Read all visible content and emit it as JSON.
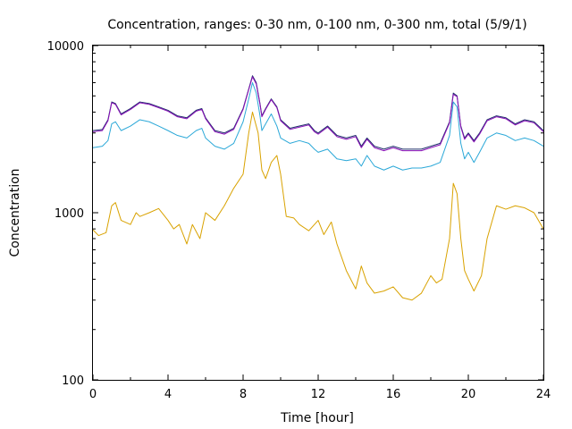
{
  "chart_data": {
    "type": "line",
    "title": "Concentration, ranges: 0-30 nm, 0-100 nm, 0-300 nm, total (5/9/1)",
    "xlabel": "Time [hour]",
    "ylabel": "Concentration",
    "xlim": [
      0,
      24
    ],
    "ylim": [
      100,
      10000
    ],
    "yscale": "log",
    "grid": false,
    "x_ticks": [
      "0",
      "4",
      "8",
      "12",
      "16",
      "20",
      "24"
    ],
    "y_ticks": [
      "100",
      "1000",
      "10000"
    ],
    "colors": {
      "total": "#1f2f6b",
      "range_0_300": "#8a0fb8",
      "range_0_100": "#2ba8d8",
      "range_0_30": "#d9a200"
    },
    "series": [
      {
        "key": "total",
        "color": "#1f2f6b",
        "x": [
          0,
          0.5,
          0.8,
          1.0,
          1.2,
          1.5,
          2.0,
          2.5,
          3.0,
          3.5,
          4.0,
          4.5,
          5.0,
          5.5,
          5.8,
          6.0,
          6.5,
          7.0,
          7.5,
          8.0,
          8.3,
          8.5,
          8.7,
          8.9,
          9.0,
          9.2,
          9.5,
          9.8,
          10.0,
          10.5,
          11.0,
          11.5,
          11.8,
          12.0,
          12.5,
          13.0,
          13.5,
          14.0,
          14.3,
          14.6,
          15.0,
          15.5,
          16.0,
          16.5,
          17.0,
          17.5,
          18.0,
          18.5,
          19.0,
          19.2,
          19.4,
          19.6,
          19.8,
          20.0,
          20.3,
          20.6,
          21.0,
          21.5,
          22.0,
          22.5,
          23.0,
          23.5,
          24.0
        ],
        "y": [
          3100,
          3150,
          3600,
          4600,
          4500,
          3900,
          4200,
          4600,
          4500,
          4300,
          4100,
          3800,
          3700,
          4100,
          4200,
          3700,
          3100,
          3000,
          3200,
          4200,
          5500,
          6600,
          6000,
          4500,
          3800,
          4200,
          4800,
          4300,
          3600,
          3200,
          3300,
          3400,
          3100,
          3000,
          3300,
          2900,
          2800,
          2900,
          2500,
          2800,
          2500,
          2400,
          2500,
          2400,
          2400,
          2400,
          2500,
          2600,
          3500,
          5200,
          5000,
          3300,
          2800,
          3000,
          2700,
          3000,
          3600,
          3800,
          3700,
          3400,
          3600,
          3500,
          3100
        ]
      },
      {
        "key": "range_0_300",
        "color": "#8a0fb8",
        "x": [
          0,
          0.5,
          0.8,
          1.0,
          1.2,
          1.5,
          2.0,
          2.5,
          3.0,
          3.5,
          4.0,
          4.5,
          5.0,
          5.5,
          5.8,
          6.0,
          6.5,
          7.0,
          7.5,
          8.0,
          8.3,
          8.5,
          8.7,
          8.9,
          9.0,
          9.2,
          9.5,
          9.8,
          10.0,
          10.5,
          11.0,
          11.5,
          11.8,
          12.0,
          12.5,
          13.0,
          13.5,
          14.0,
          14.3,
          14.6,
          15.0,
          15.5,
          16.0,
          16.5,
          17.0,
          17.5,
          18.0,
          18.5,
          19.0,
          19.2,
          19.4,
          19.6,
          19.8,
          20.0,
          20.3,
          20.6,
          21.0,
          21.5,
          22.0,
          22.5,
          23.0,
          23.5,
          24.0
        ],
        "y": [
          3050,
          3100,
          3550,
          4550,
          4450,
          3850,
          4150,
          4550,
          4450,
          4250,
          4050,
          3750,
          3650,
          4050,
          4150,
          3650,
          3050,
          2950,
          3150,
          4150,
          5450,
          6500,
          5900,
          4450,
          3750,
          4150,
          4750,
          4250,
          3550,
          3150,
          3250,
          3350,
          3050,
          2950,
          3250,
          2850,
          2750,
          2850,
          2450,
          2750,
          2450,
          2350,
          2450,
          2350,
          2350,
          2350,
          2450,
          2550,
          3450,
          5100,
          4950,
          3250,
          2750,
          2950,
          2650,
          2950,
          3550,
          3750,
          3650,
          3350,
          3550,
          3450,
          3050
        ]
      },
      {
        "key": "range_0_100",
        "color": "#2ba8d8",
        "x": [
          0,
          0.5,
          0.8,
          1.0,
          1.2,
          1.5,
          2.0,
          2.5,
          3.0,
          3.5,
          4.0,
          4.5,
          5.0,
          5.5,
          5.8,
          6.0,
          6.5,
          7.0,
          7.5,
          8.0,
          8.3,
          8.5,
          8.7,
          8.9,
          9.0,
          9.2,
          9.5,
          9.8,
          10.0,
          10.5,
          11.0,
          11.5,
          11.8,
          12.0,
          12.5,
          13.0,
          13.5,
          14.0,
          14.3,
          14.6,
          15.0,
          15.5,
          16.0,
          16.5,
          17.0,
          17.5,
          18.0,
          18.5,
          19.0,
          19.2,
          19.4,
          19.6,
          19.8,
          20.0,
          20.3,
          20.6,
          21.0,
          21.5,
          22.0,
          22.5,
          23.0,
          23.5,
          24.0
        ],
        "y": [
          2450,
          2500,
          2700,
          3400,
          3500,
          3100,
          3300,
          3600,
          3500,
          3300,
          3100,
          2900,
          2800,
          3100,
          3200,
          2800,
          2500,
          2400,
          2600,
          3500,
          4800,
          6000,
          5200,
          3800,
          3100,
          3400,
          3900,
          3300,
          2800,
          2600,
          2700,
          2600,
          2400,
          2300,
          2400,
          2100,
          2050,
          2100,
          1900,
          2200,
          1900,
          1800,
          1900,
          1800,
          1850,
          1850,
          1900,
          2000,
          2900,
          4600,
          4300,
          2600,
          2100,
          2300,
          2000,
          2300,
          2800,
          3000,
          2900,
          2700,
          2800,
          2700,
          2500
        ]
      },
      {
        "key": "range_0_30",
        "color": "#d9a200",
        "x": [
          0,
          0.3,
          0.7,
          1.0,
          1.2,
          1.5,
          2.0,
          2.3,
          2.5,
          3.0,
          3.5,
          4.0,
          4.3,
          4.6,
          5.0,
          5.3,
          5.7,
          6.0,
          6.5,
          7.0,
          7.5,
          8.0,
          8.3,
          8.5,
          8.8,
          9.0,
          9.2,
          9.5,
          9.8,
          10.0,
          10.3,
          10.7,
          11.0,
          11.5,
          12.0,
          12.3,
          12.7,
          13.0,
          13.5,
          14.0,
          14.3,
          14.6,
          15.0,
          15.5,
          16.0,
          16.5,
          17.0,
          17.5,
          18.0,
          18.3,
          18.6,
          19.0,
          19.2,
          19.4,
          19.6,
          19.8,
          20.0,
          20.3,
          20.7,
          21.0,
          21.5,
          22.0,
          22.5,
          23.0,
          23.5,
          24.0
        ],
        "y": [
          790,
          730,
          760,
          1100,
          1150,
          900,
          850,
          1000,
          950,
          1000,
          1060,
          900,
          800,
          850,
          650,
          850,
          700,
          1000,
          900,
          1100,
          1400,
          1700,
          3000,
          4000,
          3000,
          1800,
          1600,
          2000,
          2200,
          1700,
          950,
          930,
          850,
          780,
          900,
          740,
          880,
          650,
          450,
          350,
          480,
          380,
          330,
          340,
          360,
          310,
          300,
          330,
          420,
          380,
          400,
          700,
          1500,
          1300,
          700,
          450,
          400,
          340,
          420,
          700,
          1100,
          1050,
          1100,
          1070,
          1000,
          800
        ]
      }
    ]
  }
}
